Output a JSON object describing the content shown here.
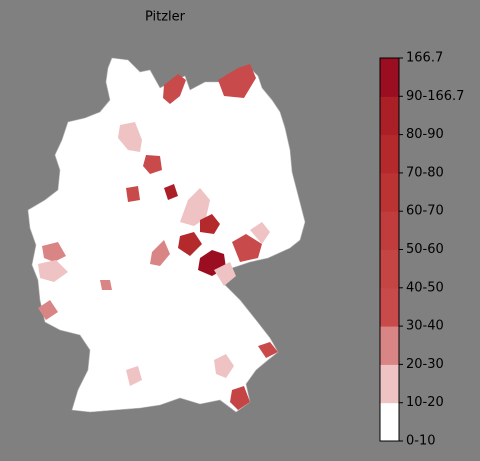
{
  "title": "Pitzler",
  "colorbar": {
    "labels": [
      "0-10",
      "10-20",
      "20-30",
      "30-40",
      "40-50",
      "50-60",
      "60-70",
      "70-80",
      "80-90",
      "90-166.7",
      "166.7"
    ],
    "colors": [
      "#ffffff",
      "#efc3c3",
      "#da8585",
      "#c94a4a",
      "#c54444",
      "#c13c3c",
      "#bb3333",
      "#b42a2c",
      "#ab1f27",
      "#9b0d20"
    ]
  }
}
